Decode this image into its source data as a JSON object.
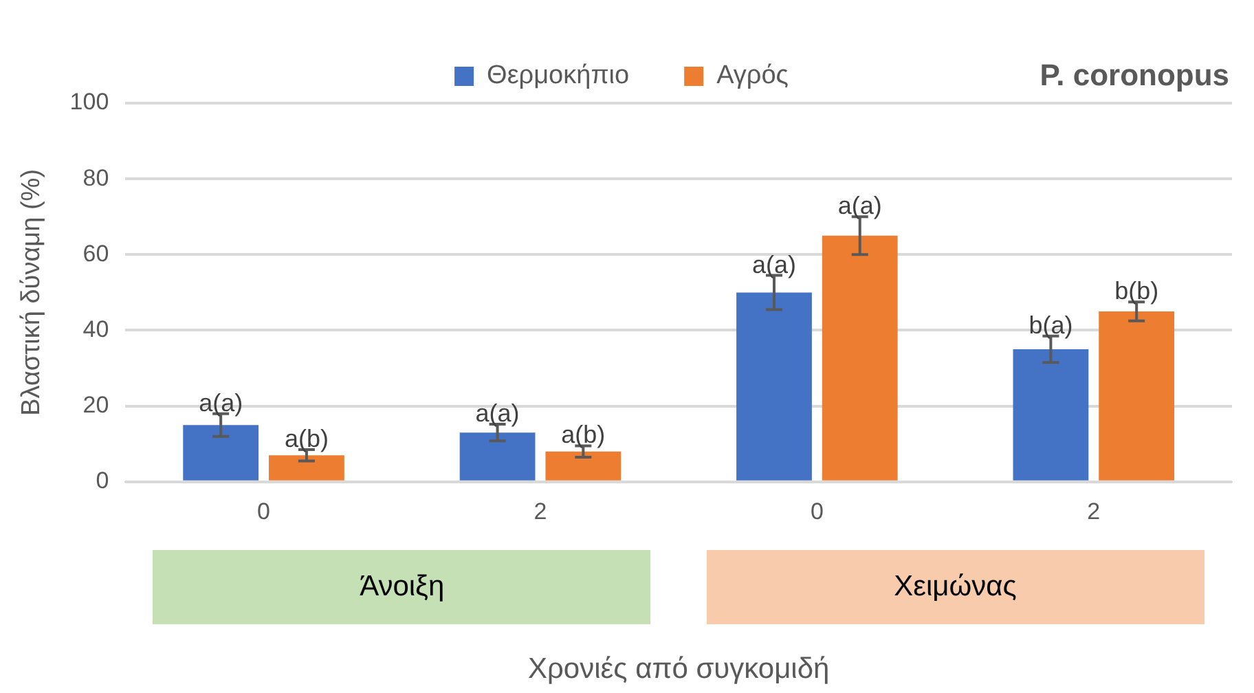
{
  "chart_data": {
    "type": "bar",
    "ylabel": "Βλαστική δύναμη (%)",
    "xlabel": "Χρονιές από συγκομιδή",
    "categories": [
      "0",
      "2",
      "0",
      "2"
    ],
    "series": [
      {
        "name": "Θερμοκήπιο",
        "color": "#4472c4",
        "values": [
          15,
          13,
          50,
          35
        ],
        "errors": [
          3,
          2.2,
          4.5,
          3.5
        ],
        "value_labels": [
          "a(a)",
          "a(a)",
          "a(a)",
          "b(a)"
        ]
      },
      {
        "name": "Αγρός",
        "color": "#ed7d31",
        "values": [
          7,
          8,
          65,
          45
        ],
        "errors": [
          1.5,
          1.5,
          5,
          2.5
        ],
        "value_labels": [
          "a(b)",
          "a(b)",
          "a(a)",
          "b(b)"
        ]
      }
    ],
    "ylim": [
      0,
      100
    ],
    "yticks": [
      0,
      20,
      40,
      60,
      80,
      100
    ],
    "grid": "y",
    "legend": "top",
    "annotations": [
      "P. coronopus",
      "Άνοιξη",
      "Χειμώνας"
    ]
  }
}
